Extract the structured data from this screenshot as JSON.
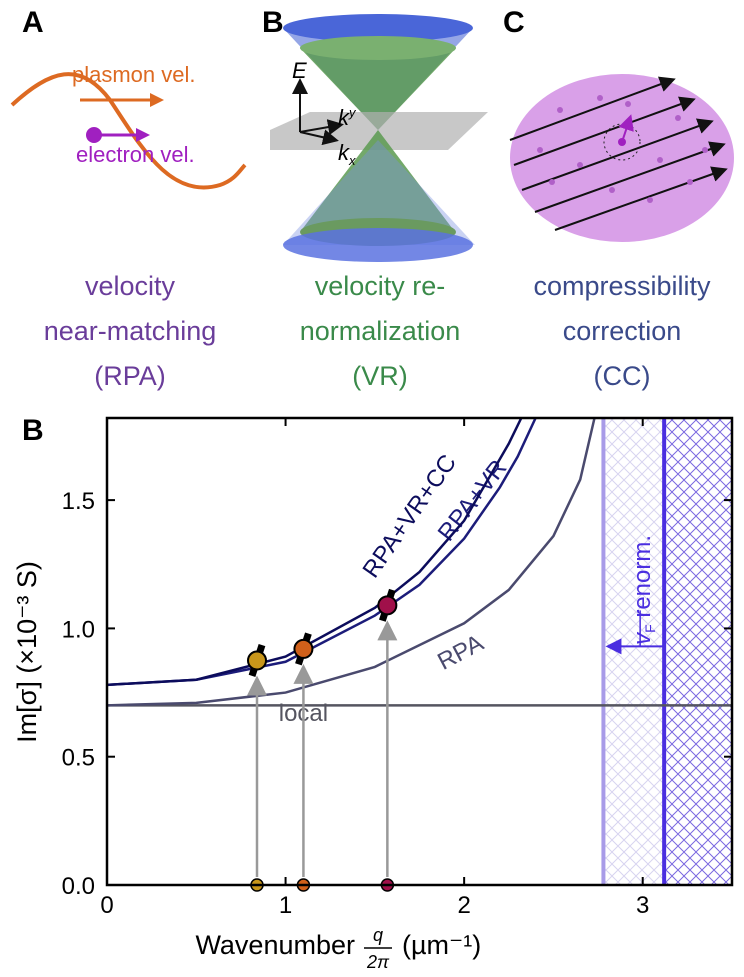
{
  "panels": [
    {
      "letter": "A",
      "labels": [
        "plasmon vel.",
        "electron vel."
      ],
      "caption": [
        "velocity",
        "near-matching",
        "(RPA)"
      ]
    },
    {
      "letter": "B",
      "axes": [
        {
          "text": "E"
        },
        {
          "text": "k",
          "sub": "y"
        },
        {
          "text": "k",
          "sub": "x"
        }
      ],
      "caption": [
        "velocity re-",
        "normalization",
        "(VR)"
      ]
    },
    {
      "letter": "C",
      "caption": [
        "compressibility",
        "correction",
        "(CC)"
      ]
    }
  ],
  "chart_data": {
    "type": "line",
    "panel": "B",
    "xlabel": "Wavenumber",
    "xlabel_fraction": [
      "q",
      "2π"
    ],
    "xlabel_unit": "(µm⁻¹)",
    "ylabel": "Im[σ] (×10⁻³ S)",
    "xlim": [
      0,
      3.5
    ],
    "ylim": [
      0,
      1.82
    ],
    "xticks": [
      0,
      1,
      2,
      3
    ],
    "yticks": [
      {
        "value": 0,
        "label": "0.0"
      },
      {
        "value": 0.5,
        "label": "0.5"
      },
      {
        "value": 1,
        "label": "1.0"
      },
      {
        "value": 1.5,
        "label": "1.5"
      }
    ],
    "series": [
      {
        "name": "local",
        "color": "#555560",
        "x": [
          0,
          3.5
        ],
        "values": [
          0.7,
          0.7
        ]
      },
      {
        "name": "RPA",
        "color": "#4a4a6e",
        "x": [
          0,
          0.5,
          1,
          1.5,
          2,
          2.25,
          2.5,
          2.65,
          2.73
        ],
        "values": [
          0.7,
          0.71,
          0.75,
          0.85,
          1.02,
          1.15,
          1.36,
          1.58,
          1.82
        ]
      },
      {
        "name": "RPA+VR",
        "color": "#1c1c7a",
        "x": [
          0,
          0.5,
          1,
          1.5,
          1.75,
          2,
          2.2,
          2.3,
          2.4
        ],
        "values": [
          0.78,
          0.8,
          0.87,
          1.05,
          1.17,
          1.35,
          1.55,
          1.67,
          1.82
        ]
      },
      {
        "name": "RPA+VR+CC",
        "color": "#0c0c5c",
        "x": [
          0,
          0.5,
          1,
          1.5,
          1.75,
          2,
          2.15,
          2.25,
          2.32
        ],
        "values": [
          0.78,
          0.8,
          0.89,
          1.08,
          1.22,
          1.42,
          1.6,
          1.72,
          1.82
        ]
      }
    ],
    "points": {
      "x": [
        0.84,
        1.1,
        1.57
      ],
      "values": [
        0.875,
        0.92,
        1.09
      ],
      "errors": [
        0.06,
        0.06,
        0.06
      ],
      "colors": [
        "#c8961a",
        "#d0601a",
        "#a0104a"
      ]
    },
    "vlines": [
      {
        "x": 2.78,
        "color": "#a89be8"
      },
      {
        "x": 3.12,
        "color": "#4a2ee0"
      }
    ],
    "annotation": {
      "text": "v",
      "sub": "F",
      "rest": " renorm."
    }
  }
}
